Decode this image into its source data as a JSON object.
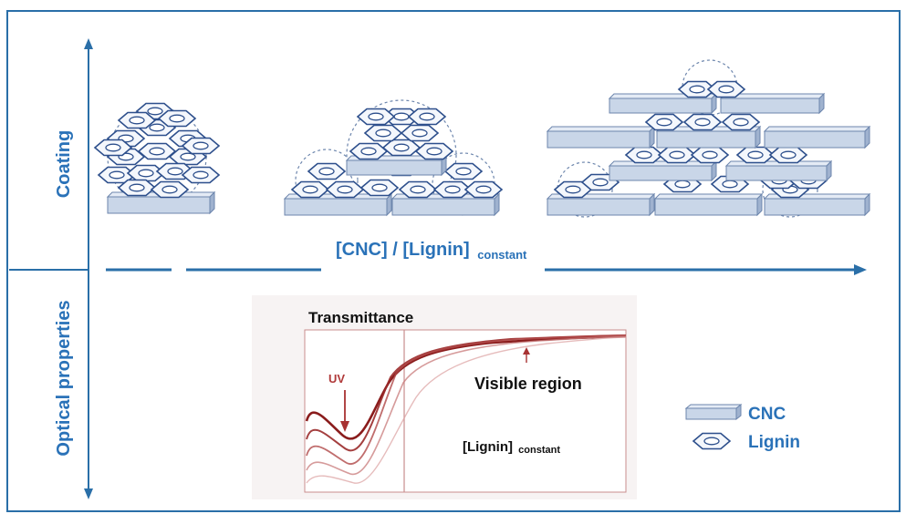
{
  "axes": {
    "y_top_label": "Coating",
    "y_bottom_label": "Optical properties"
  },
  "ratio_label": {
    "main": "[CNC] / [Lignin]",
    "subscript": "constant"
  },
  "graph": {
    "title": "Transmittance",
    "uv_label": "UV",
    "visible_label": "Visible region",
    "lignin_label": "[Lignin]",
    "lignin_subscript": "constant"
  },
  "legend": {
    "items": [
      {
        "label": "CNC",
        "icon": "cnc-rod-icon"
      },
      {
        "label": "Lignin",
        "icon": "lignin-hexagon-icon"
      }
    ]
  },
  "colors": {
    "frame": "#2a6fa8",
    "accent_text": "#2a72b8",
    "rod_fill": "#c9d6e8",
    "rod_stroke": "#6d86ad",
    "hex_stroke": "#2d4f8c",
    "curve": "#8a1c1c"
  }
}
